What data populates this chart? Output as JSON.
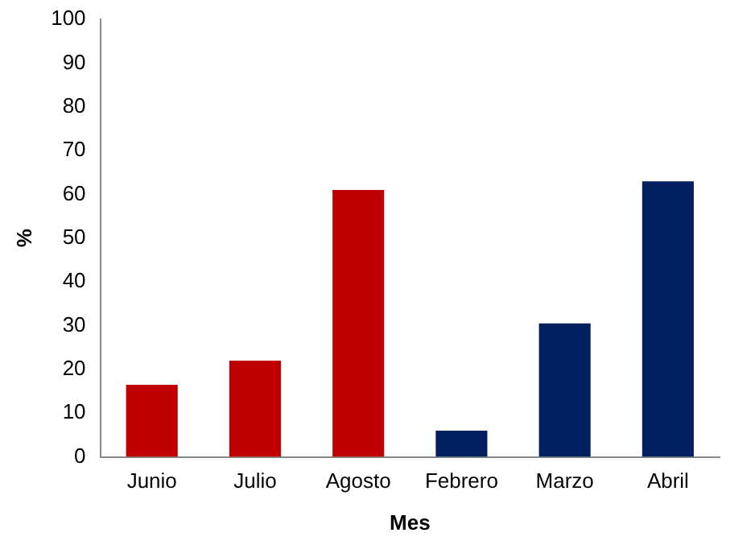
{
  "chart_data": {
    "type": "bar",
    "xlabel": "Mes",
    "ylabel": "%",
    "categories": [
      "Junio",
      "Julio",
      "Agosto",
      "Febrero",
      "Marzo",
      "Abril"
    ],
    "values": [
      16.5,
      22,
      61,
      6,
      30.5,
      63
    ],
    "colors": [
      "#c00000",
      "#c00000",
      "#c00000",
      "#002060",
      "#002060",
      "#002060"
    ],
    "ylim": [
      0,
      100
    ],
    "yticks": [
      0,
      10,
      20,
      30,
      40,
      50,
      60,
      70,
      80,
      90,
      100
    ],
    "grid": false,
    "legend": false
  }
}
